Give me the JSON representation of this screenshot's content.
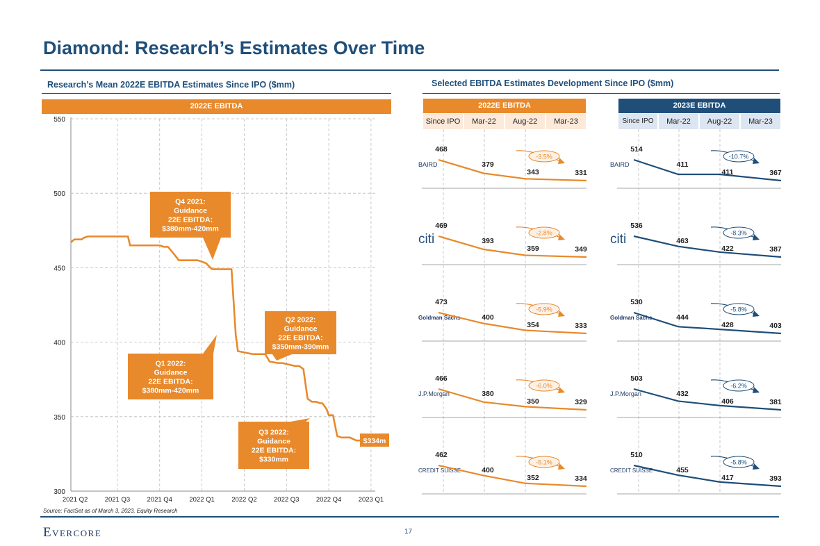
{
  "title": "Diamond: Research’s Estimates Over Time",
  "left_section_title": "Research’s Mean 2022E EBITDA Estimates Since IPO ($mm)",
  "right_section_title": "Selected EBITDA Estimates Development Since IPO ($mm)",
  "source": "Source: FactSet as of March 3, 2023, Equity Research",
  "logo": "Evercore",
  "page_number": "17",
  "colors": {
    "orange": "#e8892b",
    "navy": "#1f4e79",
    "pill_bg": "#fde9d9",
    "navy_pill": "#dce6f2"
  },
  "chart_data": [
    {
      "type": "line",
      "title": "2022E EBITDA",
      "ylim": [
        300,
        550
      ],
      "yticks": [
        300,
        350,
        400,
        450,
        500,
        550
      ],
      "xticks": [
        "2021 Q2",
        "2021 Q3",
        "2021 Q4",
        "2022 Q1",
        "2022 Q2",
        "2022 Q3",
        "2022 Q4",
        "2023 Q1"
      ],
      "xlim": [
        0,
        7.2
      ],
      "series": [
        {
          "name": "Mean 2022E EBITDA",
          "x": [
            0,
            0.08,
            0.1,
            0.25,
            0.3,
            0.4,
            0.6,
            0.9,
            1.0,
            1.2,
            1.25,
            1.35,
            1.4,
            1.5,
            1.6,
            1.75,
            1.8,
            2.0,
            2.1,
            2.2,
            2.3,
            2.5,
            2.55,
            2.7,
            2.75,
            2.9,
            3.0,
            3.1,
            3.2,
            3.3,
            3.35,
            3.5,
            3.55,
            3.6,
            3.8,
            3.9,
            3.95,
            4.3,
            4.4,
            4.6,
            4.7,
            4.9,
            5.0,
            5.3,
            5.4,
            5.5,
            5.6,
            5.7,
            5.8,
            5.9,
            5.95,
            6.0,
            6.05,
            6.1,
            6.2,
            6.3,
            6.4,
            6.5,
            6.6,
            6.75,
            7.0
          ],
          "y": [
            467,
            469,
            469,
            469,
            470,
            471,
            471,
            471,
            471,
            471,
            471,
            471,
            465,
            465,
            465,
            465,
            465,
            465,
            465,
            464,
            464,
            457,
            455,
            455,
            455,
            455,
            455,
            454,
            453,
            450,
            449,
            449,
            449,
            449,
            449,
            405,
            394,
            392,
            392,
            392,
            387,
            386,
            386,
            384,
            384,
            382,
            362,
            360,
            360,
            359,
            359,
            357,
            355,
            351,
            351,
            337,
            336,
            336,
            336,
            334,
            334
          ]
        }
      ],
      "end_label": "$334m",
      "callouts": [
        {
          "lines": [
            "Q4 2021:",
            "Guidance",
            "22E EBITDA:",
            "$380mm-420mm"
          ]
        },
        {
          "lines": [
            "Q1 2022:",
            "Guidance",
            "22E EBITDA:",
            "$380mm-420mm"
          ]
        },
        {
          "lines": [
            "Q2 2022:",
            "Guidance",
            "22E EBITDA:",
            "$350mm-390mm"
          ]
        },
        {
          "lines": [
            "Q3 2022:",
            "Guidance",
            "22E EBITDA:",
            "$330mm"
          ]
        }
      ]
    },
    {
      "type": "line",
      "title": "2022E EBITDA",
      "columns": [
        "Since IPO",
        "Mar-22",
        "Aug-22",
        "Mar-23"
      ],
      "rows": [
        {
          "bank": "BAIRD",
          "values": [
            468,
            379,
            343,
            331
          ],
          "change": "-3.5%"
        },
        {
          "bank": "citi",
          "values": [
            469,
            393,
            359,
            349
          ],
          "change": "-2.8%"
        },
        {
          "bank": "Goldman Sachs",
          "values": [
            473,
            400,
            354,
            333
          ],
          "change": "-5.9%"
        },
        {
          "bank": "J.P.Morgan",
          "values": [
            466,
            380,
            350,
            329
          ],
          "change": "-6.0%"
        },
        {
          "bank": "CREDIT SUISSE",
          "values": [
            462,
            400,
            352,
            334
          ],
          "change": "-5.1%"
        }
      ]
    },
    {
      "type": "line",
      "title": "2023E EBITDA",
      "columns": [
        "Since IPO",
        "Mar-22",
        "Aug-22",
        "Mar-23"
      ],
      "rows": [
        {
          "bank": "BAIRD",
          "values": [
            514,
            411,
            411,
            367
          ],
          "change": "-10.7%"
        },
        {
          "bank": "citi",
          "values": [
            536,
            463,
            422,
            387
          ],
          "change": "-8.3%"
        },
        {
          "bank": "Goldman Sachs",
          "values": [
            530,
            444,
            428,
            403
          ],
          "change": "-5.8%"
        },
        {
          "bank": "J.P.Morgan",
          "values": [
            503,
            432,
            406,
            381
          ],
          "change": "-6.2%"
        },
        {
          "bank": "CREDIT SUISSE",
          "values": [
            510,
            455,
            417,
            393
          ],
          "change": "-5.8%"
        }
      ]
    }
  ]
}
